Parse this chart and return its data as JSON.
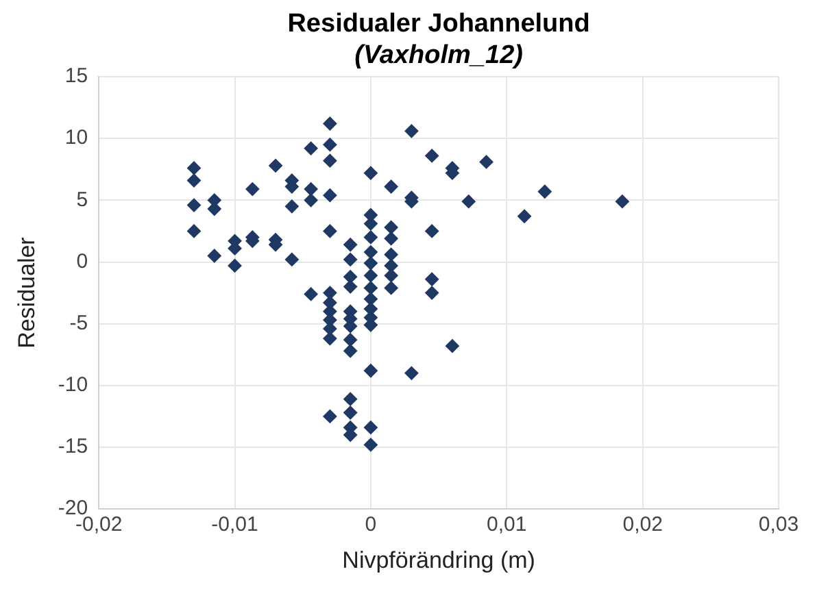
{
  "chart_data": {
    "type": "scatter",
    "title": [
      "Residualer Johannelund",
      "(Vaxholm_12)"
    ],
    "xlabel": "Nivpförändring (m)",
    "ylabel": "Residualer",
    "marker": "diamond",
    "grid": true,
    "legend": false,
    "xlim": [
      -0.02,
      0.03
    ],
    "xticks": [
      {
        "value": -0.02,
        "label": "-0,02"
      },
      {
        "value": -0.01,
        "label": "-0,01"
      },
      {
        "value": 0,
        "label": "0"
      },
      {
        "value": 0.01,
        "label": "0,01"
      },
      {
        "value": 0.02,
        "label": "0,02"
      },
      {
        "value": 0.03,
        "label": "0,03"
      }
    ],
    "ylim": [
      -20,
      15
    ],
    "yticks": [
      -20,
      -15,
      -10,
      -5,
      0,
      5,
      10,
      15
    ],
    "series": [
      {
        "color": "#203864",
        "x": [
          -0.013,
          -0.013,
          -0.013,
          -0.013,
          -0.0115,
          -0.0115,
          -0.0115,
          -0.01,
          -0.01,
          -0.01,
          -0.0087,
          -0.0087,
          -0.0087,
          -0.007,
          -0.007,
          -0.007,
          -0.0058,
          -0.0058,
          -0.0058,
          -0.0058,
          -0.0044,
          -0.0044,
          -0.0044,
          -0.0044,
          -0.003,
          -0.003,
          -0.003,
          -0.003,
          -0.003,
          -0.003,
          -0.003,
          -0.003,
          -0.003,
          -0.003,
          -0.003,
          -0.003,
          -0.0015,
          -0.0015,
          -0.0015,
          -0.0015,
          -0.0015,
          -0.0015,
          -0.0015,
          -0.0015,
          -0.0015,
          -0.0015,
          -0.0015,
          -0.0015,
          -0.0015,
          0,
          0,
          0,
          0,
          0,
          0,
          0,
          0,
          0,
          0,
          0,
          0,
          0,
          0,
          0,
          0.0015,
          0.0015,
          0.0015,
          0.0015,
          0.0015,
          0.0015,
          0.0015,
          0.003,
          0.003,
          0.003,
          0.003,
          0.0045,
          0.0045,
          0.0045,
          0.0045,
          0.006,
          0.006,
          0.006,
          0.0072,
          0.0085,
          0.0113,
          0.0128,
          0.0185
        ],
        "values": [
          7.6,
          6.6,
          4.6,
          2.5,
          5.0,
          4.3,
          0.5,
          1.7,
          1.1,
          -0.3,
          5.9,
          2.0,
          1.7,
          7.8,
          1.8,
          1.4,
          6.6,
          6.1,
          4.5,
          0.2,
          9.2,
          5.9,
          5.0,
          -2.6,
          11.2,
          9.5,
          8.2,
          5.4,
          2.5,
          -2.5,
          -3.3,
          -4.0,
          -4.7,
          -5.4,
          -6.2,
          -12.5,
          1.4,
          0.2,
          -1.2,
          -2.0,
          -4.0,
          -4.6,
          -5.2,
          -6.3,
          -7.2,
          -11.1,
          -12.2,
          -13.4,
          -14.0,
          7.2,
          3.8,
          3.1,
          2.0,
          0.8,
          -0.1,
          -1.1,
          -2.1,
          -3.0,
          -3.8,
          -4.5,
          -5.1,
          -8.8,
          -13.4,
          -14.8,
          6.1,
          2.8,
          1.9,
          0.6,
          -0.3,
          -1.1,
          -2.1,
          10.6,
          5.2,
          4.9,
          -9.0,
          8.6,
          2.5,
          -1.4,
          -2.5,
          7.6,
          7.2,
          -6.8,
          4.9,
          8.1,
          3.7,
          5.7,
          4.9
        ]
      }
    ]
  }
}
